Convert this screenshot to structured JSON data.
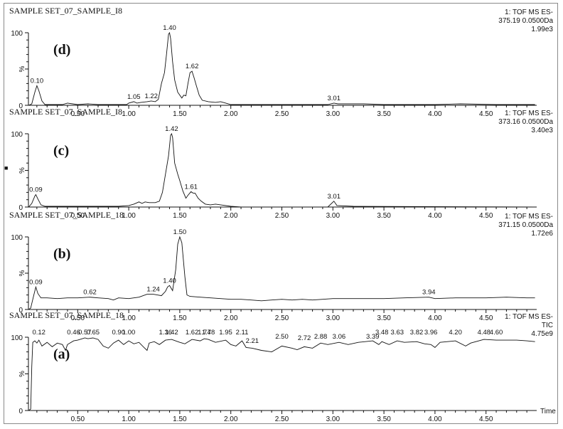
{
  "chart_data": [
    {
      "panel": "d",
      "type": "line",
      "title": "SAMPLE SET_07_SAMPLE_I8",
      "panel_label": "(d)",
      "info": [
        "1: TOF MS ES-",
        "375.19 0.0500Da",
        "1.99e3"
      ],
      "xlabel": "",
      "ylabel": "%",
      "xlim": [
        0,
        5.0
      ],
      "ylim": [
        0,
        100
      ],
      "yticks": [
        "0",
        "100"
      ],
      "xticks": [
        "0.50",
        "1.00",
        "1.50",
        "2.00",
        "2.50",
        "3.00",
        "3.50",
        "4.00",
        "4.50"
      ],
      "peak_labels": [
        {
          "x": 0.1,
          "label": "0.10",
          "y": 27
        },
        {
          "x": 1.05,
          "label": "1.05",
          "y": 5
        },
        {
          "x": 1.22,
          "label": "1.22",
          "y": 6
        },
        {
          "x": 1.4,
          "label": "1.40",
          "y": 100
        },
        {
          "x": 1.62,
          "label": "1.62",
          "y": 47
        },
        {
          "x": 3.01,
          "label": "3.01",
          "y": 3
        }
      ],
      "points": [
        [
          0.02,
          0
        ],
        [
          0.05,
          2
        ],
        [
          0.08,
          18
        ],
        [
          0.1,
          27
        ],
        [
          0.12,
          20
        ],
        [
          0.15,
          6
        ],
        [
          0.18,
          1
        ],
        [
          0.25,
          1
        ],
        [
          0.35,
          1
        ],
        [
          0.4,
          3
        ],
        [
          0.45,
          2
        ],
        [
          0.5,
          1
        ],
        [
          0.6,
          2
        ],
        [
          0.7,
          1
        ],
        [
          0.8,
          1
        ],
        [
          0.9,
          1
        ],
        [
          0.98,
          1
        ],
        [
          1.0,
          3
        ],
        [
          1.05,
          5
        ],
        [
          1.08,
          3
        ],
        [
          1.12,
          4
        ],
        [
          1.18,
          5
        ],
        [
          1.22,
          6
        ],
        [
          1.26,
          5
        ],
        [
          1.29,
          8
        ],
        [
          1.32,
          30
        ],
        [
          1.35,
          45
        ],
        [
          1.37,
          70
        ],
        [
          1.39,
          98
        ],
        [
          1.4,
          100
        ],
        [
          1.41,
          92
        ],
        [
          1.43,
          60
        ],
        [
          1.45,
          35
        ],
        [
          1.48,
          18
        ],
        [
          1.52,
          10
        ],
        [
          1.54,
          14
        ],
        [
          1.56,
          13
        ],
        [
          1.58,
          30
        ],
        [
          1.6,
          45
        ],
        [
          1.62,
          47
        ],
        [
          1.64,
          38
        ],
        [
          1.66,
          28
        ],
        [
          1.69,
          14
        ],
        [
          1.72,
          7
        ],
        [
          1.78,
          5
        ],
        [
          1.85,
          4
        ],
        [
          1.9,
          5
        ],
        [
          1.95,
          3
        ],
        [
          2.0,
          1
        ],
        [
          2.5,
          1
        ],
        [
          2.95,
          1
        ],
        [
          3.01,
          3
        ],
        [
          3.05,
          2
        ],
        [
          3.2,
          2
        ],
        [
          3.3,
          2
        ],
        [
          3.5,
          1
        ],
        [
          4.0,
          1
        ],
        [
          4.25,
          2
        ],
        [
          4.6,
          1
        ],
        [
          4.98,
          1
        ]
      ]
    },
    {
      "panel": "c",
      "type": "line",
      "title": "SAMPLE SET_07_SAMPLE_I8",
      "panel_label": "(c)",
      "info": [
        "1: TOF MS ES-",
        "373.16 0.0500Da",
        "3.40e3"
      ],
      "xlabel": "",
      "ylabel": "%",
      "xlim": [
        0,
        5.0
      ],
      "ylim": [
        0,
        100
      ],
      "yticks": [
        "0",
        "100"
      ],
      "xticks": [
        "0.50",
        "1.00",
        "1.50",
        "2.00",
        "2.50",
        "3.00",
        "3.50",
        "4.00",
        "4.50"
      ],
      "peak_labels": [
        {
          "x": 0.09,
          "label": "0.09",
          "y": 17
        },
        {
          "x": 1.42,
          "label": "1.42",
          "y": 100
        },
        {
          "x": 1.61,
          "label": "1.61",
          "y": 21
        },
        {
          "x": 3.01,
          "label": "3.01",
          "y": 8
        }
      ],
      "points": [
        [
          0.02,
          0
        ],
        [
          0.05,
          5
        ],
        [
          0.08,
          15
        ],
        [
          0.09,
          17
        ],
        [
          0.11,
          11
        ],
        [
          0.14,
          3
        ],
        [
          0.18,
          1
        ],
        [
          0.3,
          1
        ],
        [
          0.5,
          1
        ],
        [
          0.7,
          1
        ],
        [
          0.9,
          1
        ],
        [
          1.0,
          2
        ],
        [
          1.05,
          4
        ],
        [
          1.1,
          7
        ],
        [
          1.13,
          5
        ],
        [
          1.16,
          7
        ],
        [
          1.2,
          6
        ],
        [
          1.26,
          6
        ],
        [
          1.3,
          8
        ],
        [
          1.33,
          20
        ],
        [
          1.36,
          45
        ],
        [
          1.39,
          70
        ],
        [
          1.41,
          98
        ],
        [
          1.42,
          100
        ],
        [
          1.43,
          95
        ],
        [
          1.45,
          60
        ],
        [
          1.48,
          45
        ],
        [
          1.5,
          36
        ],
        [
          1.53,
          22
        ],
        [
          1.56,
          12
        ],
        [
          1.58,
          16
        ],
        [
          1.61,
          21
        ],
        [
          1.63,
          19
        ],
        [
          1.65,
          19
        ],
        [
          1.68,
          12
        ],
        [
          1.71,
          8
        ],
        [
          1.75,
          4
        ],
        [
          1.8,
          3
        ],
        [
          1.85,
          4
        ],
        [
          1.9,
          3
        ],
        [
          2.0,
          1
        ],
        [
          2.1,
          0
        ],
        [
          2.95,
          0
        ],
        [
          3.01,
          8
        ],
        [
          3.04,
          2
        ],
        [
          3.2,
          1
        ],
        [
          4.98,
          0
        ]
      ]
    },
    {
      "panel": "b",
      "type": "line",
      "title": "SAMPLE SET_07_SAMPLE_18",
      "panel_label": "(b)",
      "info": [
        "1: TOF MS ES-",
        "371.15 0.0500Da",
        "1.72e6"
      ],
      "xlabel": "",
      "ylabel": "%",
      "xlim": [
        0,
        5.0
      ],
      "ylim": [
        0,
        100
      ],
      "yticks": [
        "0",
        "100"
      ],
      "xticks": [
        "0.50",
        "1.00",
        "1.50",
        "2.00",
        "2.50",
        "3.00",
        "3.50",
        "4.00",
        "4.50"
      ],
      "peak_labels": [
        {
          "x": 0.09,
          "label": "0.09",
          "y": 31
        },
        {
          "x": 0.62,
          "label": "0.62",
          "y": 17
        },
        {
          "x": 1.24,
          "label": "1.24",
          "y": 21
        },
        {
          "x": 1.4,
          "label": "1.40",
          "y": 33
        },
        {
          "x": 1.5,
          "label": "1.50",
          "y": 100
        },
        {
          "x": 3.94,
          "label": "3.94",
          "y": 17
        }
      ],
      "points": [
        [
          0.02,
          0
        ],
        [
          0.04,
          2
        ],
        [
          0.07,
          20
        ],
        [
          0.09,
          31
        ],
        [
          0.11,
          22
        ],
        [
          0.14,
          16
        ],
        [
          0.2,
          16
        ],
        [
          0.3,
          15
        ],
        [
          0.4,
          16
        ],
        [
          0.5,
          16
        ],
        [
          0.62,
          17
        ],
        [
          0.7,
          16
        ],
        [
          0.8,
          15
        ],
        [
          0.85,
          13
        ],
        [
          0.9,
          16
        ],
        [
          1.0,
          15
        ],
        [
          1.1,
          17
        ],
        [
          1.18,
          21
        ],
        [
          1.24,
          21
        ],
        [
          1.28,
          20
        ],
        [
          1.32,
          19
        ],
        [
          1.36,
          25
        ],
        [
          1.38,
          31
        ],
        [
          1.4,
          33
        ],
        [
          1.43,
          26
        ],
        [
          1.46,
          55
        ],
        [
          1.48,
          90
        ],
        [
          1.5,
          100
        ],
        [
          1.52,
          92
        ],
        [
          1.55,
          45
        ],
        [
          1.57,
          20
        ],
        [
          1.6,
          18
        ],
        [
          1.7,
          17
        ],
        [
          1.8,
          16
        ],
        [
          1.9,
          15
        ],
        [
          2.0,
          14
        ],
        [
          2.1,
          14
        ],
        [
          2.2,
          13
        ],
        [
          2.3,
          12
        ],
        [
          2.4,
          13
        ],
        [
          2.5,
          14
        ],
        [
          2.6,
          13
        ],
        [
          2.7,
          14
        ],
        [
          2.8,
          13
        ],
        [
          2.9,
          14
        ],
        [
          3.0,
          15
        ],
        [
          3.2,
          15
        ],
        [
          3.5,
          15
        ],
        [
          3.7,
          16
        ],
        [
          3.94,
          17
        ],
        [
          4.0,
          15
        ],
        [
          4.2,
          16
        ],
        [
          4.5,
          16
        ],
        [
          4.7,
          17
        ],
        [
          4.9,
          16
        ],
        [
          4.98,
          16
        ]
      ]
    },
    {
      "panel": "a",
      "type": "line",
      "title": "SAMPLE SET_07_SAMPLE_18",
      "panel_label": "(a)",
      "info": [
        "1: TOF MS ES-",
        "TIC",
        "4.75e9"
      ],
      "xlabel": "Time",
      "ylabel": "%",
      "xlim": [
        0,
        5.0
      ],
      "ylim": [
        0,
        100
      ],
      "yticks": [
        "0",
        "100"
      ],
      "xticks": [
        "0.50",
        "1.00",
        "1.50",
        "2.00",
        "2.50",
        "3.00",
        "3.50",
        "4.00",
        "4.50"
      ],
      "peak_labels": [
        {
          "x": 0.12,
          "label": "0.12"
        },
        {
          "x": 0.46,
          "label": "0.46"
        },
        {
          "x": 0.57,
          "label": "0.57"
        },
        {
          "x": 0.65,
          "label": "0.65"
        },
        {
          "x": 0.9,
          "label": "0.90"
        },
        {
          "x": 1.0,
          "label": "1.00"
        },
        {
          "x": 1.36,
          "label": "1.36"
        },
        {
          "x": 1.42,
          "label": "1.42"
        },
        {
          "x": 1.62,
          "label": "1.62"
        },
        {
          "x": 1.74,
          "label": "1.74"
        },
        {
          "x": 1.78,
          "label": "1.78"
        },
        {
          "x": 1.95,
          "label": "1.95"
        },
        {
          "x": 2.11,
          "label": "2.11"
        },
        {
          "x": 2.21,
          "label": "2.21"
        },
        {
          "x": 2.5,
          "label": "2.50"
        },
        {
          "x": 2.72,
          "label": "2.72"
        },
        {
          "x": 2.88,
          "label": "2.88"
        },
        {
          "x": 3.06,
          "label": "3.06"
        },
        {
          "x": 3.39,
          "label": "3.39"
        },
        {
          "x": 3.48,
          "label": "3.48"
        },
        {
          "x": 3.63,
          "label": "3.63"
        },
        {
          "x": 3.82,
          "label": "3.82"
        },
        {
          "x": 3.96,
          "label": "3.96"
        },
        {
          "x": 4.2,
          "label": "4.20"
        },
        {
          "x": 4.48,
          "label": "4.48"
        },
        {
          "x": 4.6,
          "label": "4.60"
        }
      ],
      "points": [
        [
          0.02,
          0
        ],
        [
          0.04,
          2
        ],
        [
          0.05,
          60
        ],
        [
          0.06,
          93
        ],
        [
          0.08,
          95
        ],
        [
          0.1,
          92
        ],
        [
          0.12,
          96
        ],
        [
          0.15,
          88
        ],
        [
          0.2,
          93
        ],
        [
          0.25,
          87
        ],
        [
          0.3,
          92
        ],
        [
          0.35,
          90
        ],
        [
          0.38,
          82
        ],
        [
          0.4,
          90
        ],
        [
          0.46,
          95
        ],
        [
          0.5,
          96
        ],
        [
          0.57,
          99
        ],
        [
          0.6,
          98
        ],
        [
          0.65,
          99
        ],
        [
          0.7,
          97
        ],
        [
          0.75,
          88
        ],
        [
          0.8,
          85
        ],
        [
          0.85,
          92
        ],
        [
          0.9,
          96
        ],
        [
          0.95,
          90
        ],
        [
          1.0,
          95
        ],
        [
          1.05,
          91
        ],
        [
          1.1,
          93
        ],
        [
          1.15,
          86
        ],
        [
          1.18,
          82
        ],
        [
          1.2,
          92
        ],
        [
          1.25,
          94
        ],
        [
          1.3,
          90
        ],
        [
          1.36,
          96
        ],
        [
          1.42,
          97
        ],
        [
          1.5,
          93
        ],
        [
          1.55,
          91
        ],
        [
          1.62,
          97
        ],
        [
          1.7,
          95
        ],
        [
          1.74,
          98
        ],
        [
          1.78,
          97
        ],
        [
          1.85,
          93
        ],
        [
          1.95,
          96
        ],
        [
          2.0,
          90
        ],
        [
          2.05,
          88
        ],
        [
          2.11,
          95
        ],
        [
          2.15,
          86
        ],
        [
          2.21,
          85
        ],
        [
          2.3,
          82
        ],
        [
          2.4,
          80
        ],
        [
          2.5,
          88
        ],
        [
          2.6,
          85
        ],
        [
          2.65,
          83
        ],
        [
          2.72,
          87
        ],
        [
          2.8,
          85
        ],
        [
          2.88,
          92
        ],
        [
          2.95,
          90
        ],
        [
          3.06,
          93
        ],
        [
          3.15,
          90
        ],
        [
          3.25,
          93
        ],
        [
          3.39,
          95
        ],
        [
          3.45,
          90
        ],
        [
          3.48,
          94
        ],
        [
          3.55,
          90
        ],
        [
          3.63,
          95
        ],
        [
          3.7,
          93
        ],
        [
          3.82,
          94
        ],
        [
          3.9,
          91
        ],
        [
          3.96,
          90
        ],
        [
          4.0,
          86
        ],
        [
          4.05,
          93
        ],
        [
          4.2,
          95
        ],
        [
          4.3,
          88
        ],
        [
          4.35,
          92
        ],
        [
          4.48,
          97
        ],
        [
          4.6,
          96
        ],
        [
          4.7,
          96
        ],
        [
          4.8,
          96
        ],
        [
          4.9,
          95
        ],
        [
          4.98,
          94
        ]
      ]
    }
  ],
  "ui": {
    "side_marker": "■",
    "percent_symbol": "%",
    "time_label": "Time"
  }
}
